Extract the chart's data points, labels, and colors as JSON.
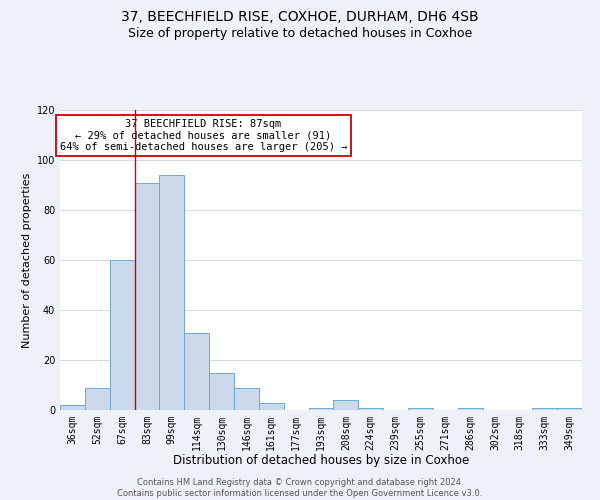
{
  "title": "37, BEECHFIELD RISE, COXHOE, DURHAM, DH6 4SB",
  "subtitle": "Size of property relative to detached houses in Coxhoe",
  "xlabel": "Distribution of detached houses by size in Coxhoe",
  "ylabel": "Number of detached properties",
  "bar_labels": [
    "36sqm",
    "52sqm",
    "67sqm",
    "83sqm",
    "99sqm",
    "114sqm",
    "130sqm",
    "146sqm",
    "161sqm",
    "177sqm",
    "193sqm",
    "208sqm",
    "224sqm",
    "239sqm",
    "255sqm",
    "271sqm",
    "286sqm",
    "302sqm",
    "318sqm",
    "333sqm",
    "349sqm"
  ],
  "bar_heights": [
    2,
    9,
    60,
    91,
    94,
    31,
    15,
    9,
    3,
    0,
    1,
    4,
    1,
    0,
    1,
    0,
    1,
    0,
    0,
    1,
    1
  ],
  "bar_color": "#ccd9ea",
  "bar_edge_color": "#6aaad4",
  "ylim": [
    0,
    120
  ],
  "yticks": [
    0,
    20,
    40,
    60,
    80,
    100,
    120
  ],
  "vline_color": "#cc0000",
  "vline_x": 3.0,
  "annotation_line1": "37 BEECHFIELD RISE: 87sqm",
  "annotation_line2": "← 29% of detached houses are smaller (91)",
  "annotation_line3": "64% of semi-detached houses are larger (205) →",
  "annotation_box_edgecolor": "#cc0000",
  "footer_line1": "Contains HM Land Registry data © Crown copyright and database right 2024.",
  "footer_line2": "Contains public sector information licensed under the Open Government Licence v3.0.",
  "background_color": "#eef2f8",
  "plot_background_color": "#ffffff",
  "grid_color": "#c8d4e8",
  "title_fontsize": 10,
  "subtitle_fontsize": 9,
  "xlabel_fontsize": 8.5,
  "ylabel_fontsize": 8,
  "tick_fontsize": 7,
  "annotation_fontsize": 7.5,
  "footer_fontsize": 6
}
